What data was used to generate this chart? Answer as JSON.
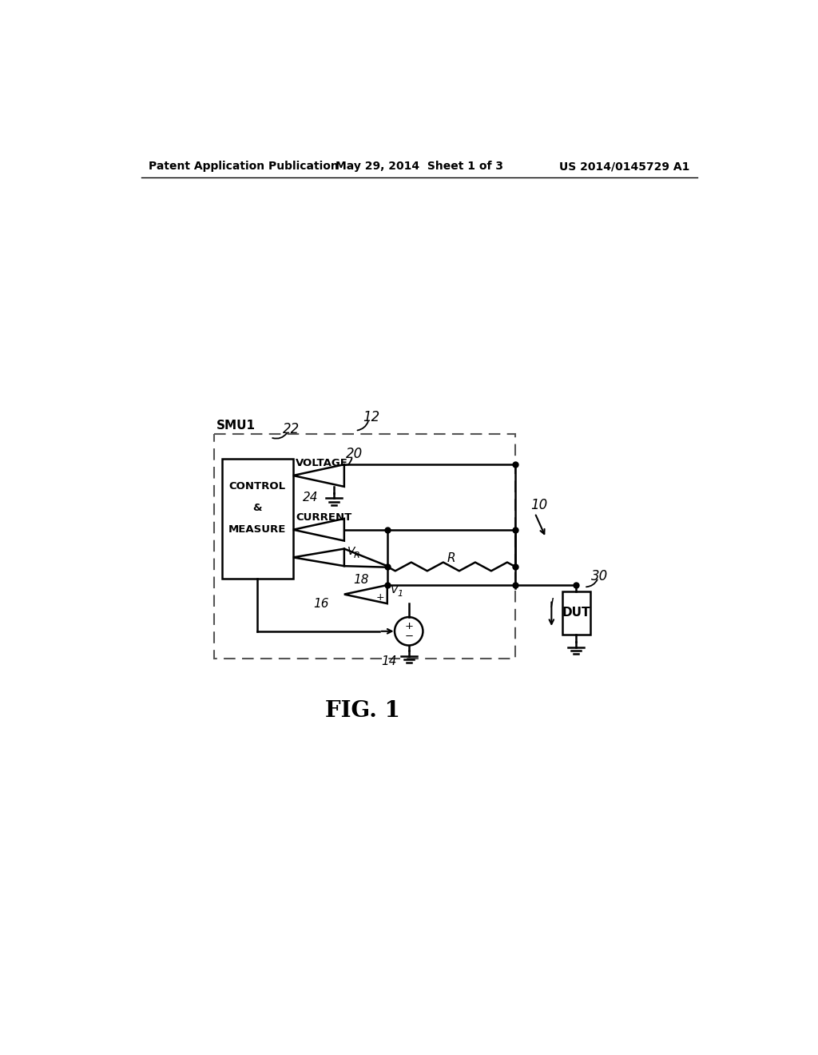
{
  "header_left": "Patent Application Publication",
  "header_center": "May 29, 2014  Sheet 1 of 3",
  "header_right": "US 2014/0145729 A1",
  "fig_label": "FIG. 1",
  "bg_color": "#ffffff"
}
